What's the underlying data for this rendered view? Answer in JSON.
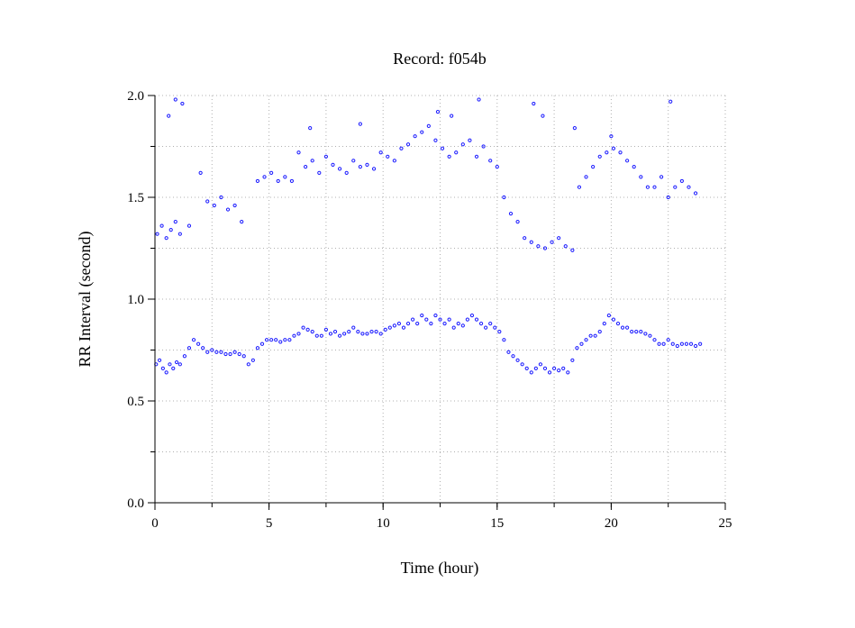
{
  "chart_data": {
    "type": "scatter",
    "title": "Record:  f054b",
    "xlabel": "Time (hour)",
    "ylabel": "RR Interval (second)",
    "xlim": [
      0,
      25
    ],
    "ylim": [
      0,
      2.0
    ],
    "x_ticks": [
      0,
      5,
      10,
      15,
      20,
      25
    ],
    "x_tick_labels": [
      "0",
      "5",
      "10",
      "15",
      "20",
      "25"
    ],
    "y_ticks": [
      0.0,
      0.5,
      1.0,
      1.5,
      2.0
    ],
    "y_tick_labels": [
      "0.0",
      "0.5",
      "1.0",
      "1.5",
      "2.0"
    ],
    "grid": true,
    "marker": "open-circle",
    "color": "#1a1aff",
    "series": [
      {
        "x": [
          0.05,
          0.2,
          0.35,
          0.5,
          0.65,
          0.8,
          0.95,
          1.1,
          1.3,
          1.5,
          1.7,
          1.9,
          2.1,
          2.3,
          2.5,
          2.7,
          2.9,
          3.1,
          3.3,
          3.5,
          3.7,
          3.9,
          4.1,
          4.3,
          4.5,
          4.7,
          4.9,
          5.1,
          5.3,
          5.5,
          5.7,
          5.9,
          6.1,
          6.3,
          6.5,
          6.7,
          6.9,
          7.1,
          7.3,
          7.5,
          7.7,
          7.9,
          8.1,
          8.3,
          8.5,
          8.7,
          8.9,
          9.1,
          9.3,
          9.5,
          9.7,
          9.9,
          10.1,
          10.3,
          10.5,
          10.7,
          10.9,
          11.1,
          11.3,
          11.5,
          11.7,
          11.9,
          12.1,
          12.3,
          12.5,
          12.7,
          12.9,
          13.1,
          13.3,
          13.5,
          13.7,
          13.9,
          14.1,
          14.3,
          14.5,
          14.7,
          14.9,
          15.1,
          15.3,
          15.5,
          15.7,
          15.9,
          16.1,
          16.3,
          16.5,
          16.7,
          16.9,
          17.1,
          17.3,
          17.5,
          17.7,
          17.9,
          18.1,
          18.3,
          18.5,
          18.7,
          18.9,
          19.1,
          19.3,
          19.5,
          19.7,
          19.9,
          20.1,
          20.3,
          20.5,
          20.7,
          20.9,
          21.1,
          21.3,
          21.5,
          21.7,
          21.9,
          22.1,
          22.3,
          22.5,
          22.7,
          22.9,
          23.1,
          23.3,
          23.5,
          23.7,
          23.9
        ],
        "y": [
          0.68,
          0.7,
          0.66,
          0.64,
          0.68,
          0.66,
          0.69,
          0.68,
          0.72,
          0.76,
          0.8,
          0.78,
          0.76,
          0.74,
          0.75,
          0.74,
          0.74,
          0.73,
          0.73,
          0.74,
          0.73,
          0.72,
          0.68,
          0.7,
          0.76,
          0.78,
          0.8,
          0.8,
          0.8,
          0.79,
          0.8,
          0.8,
          0.82,
          0.83,
          0.86,
          0.85,
          0.84,
          0.82,
          0.82,
          0.85,
          0.83,
          0.84,
          0.82,
          0.83,
          0.84,
          0.86,
          0.84,
          0.83,
          0.83,
          0.84,
          0.84,
          0.83,
          0.85,
          0.86,
          0.87,
          0.88,
          0.86,
          0.88,
          0.9,
          0.88,
          0.92,
          0.9,
          0.88,
          0.92,
          0.9,
          0.88,
          0.9,
          0.86,
          0.88,
          0.87,
          0.9,
          0.92,
          0.9,
          0.88,
          0.86,
          0.88,
          0.86,
          0.84,
          0.8,
          0.74,
          0.72,
          0.7,
          0.68,
          0.66,
          0.64,
          0.66,
          0.68,
          0.66,
          0.64,
          0.66,
          0.65,
          0.66,
          0.64,
          0.7,
          0.76,
          0.78,
          0.8,
          0.82,
          0.82,
          0.84,
          0.88,
          0.92,
          0.9,
          0.88,
          0.86,
          0.86,
          0.84,
          0.84,
          0.84,
          0.83,
          0.82,
          0.8,
          0.78,
          0.78,
          0.8,
          0.78,
          0.77,
          0.78,
          0.78,
          0.78,
          0.77,
          0.78
        ]
      },
      {
        "x": [
          0.1,
          0.3,
          0.5,
          0.7,
          0.9,
          1.1,
          1.5,
          2.0,
          2.3,
          2.6,
          2.9,
          3.2,
          3.5,
          3.8,
          4.5,
          4.8,
          5.1,
          5.4,
          5.7,
          6.0,
          6.3,
          6.6,
          6.9,
          7.2,
          7.5,
          7.8,
          8.1,
          8.4,
          8.7,
          9.0,
          9.3,
          9.6,
          9.9,
          10.2,
          10.5,
          10.8,
          11.1,
          11.4,
          11.7,
          12.0,
          12.3,
          12.6,
          12.9,
          13.2,
          13.5,
          13.8,
          14.1,
          14.4,
          14.7,
          15.0,
          15.3,
          15.6,
          15.9,
          16.2,
          16.5,
          16.8,
          17.1,
          17.4,
          17.7,
          18.0,
          18.3,
          18.6,
          18.9,
          19.2,
          19.5,
          19.8,
          20.1,
          20.4,
          20.7,
          21.0,
          21.3,
          21.6,
          21.9,
          22.2,
          22.5,
          22.8,
          23.1,
          23.4,
          23.7,
          0.6,
          0.9,
          1.2,
          6.8,
          9.0,
          12.4,
          13.0,
          14.2,
          16.6,
          17.0,
          18.4,
          20.0,
          22.6
        ],
        "y": [
          1.32,
          1.36,
          1.3,
          1.34,
          1.38,
          1.32,
          1.36,
          1.62,
          1.48,
          1.46,
          1.5,
          1.44,
          1.46,
          1.38,
          1.58,
          1.6,
          1.62,
          1.58,
          1.6,
          1.58,
          1.72,
          1.65,
          1.68,
          1.62,
          1.7,
          1.66,
          1.64,
          1.62,
          1.68,
          1.65,
          1.66,
          1.64,
          1.72,
          1.7,
          1.68,
          1.74,
          1.76,
          1.8,
          1.82,
          1.85,
          1.78,
          1.74,
          1.7,
          1.72,
          1.76,
          1.78,
          1.7,
          1.75,
          1.68,
          1.65,
          1.5,
          1.42,
          1.38,
          1.3,
          1.28,
          1.26,
          1.25,
          1.28,
          1.3,
          1.26,
          1.24,
          1.55,
          1.6,
          1.65,
          1.7,
          1.72,
          1.74,
          1.72,
          1.68,
          1.65,
          1.6,
          1.55,
          1.55,
          1.6,
          1.5,
          1.55,
          1.58,
          1.55,
          1.52,
          1.9,
          1.98,
          1.96,
          1.84,
          1.86,
          1.92,
          1.9,
          1.98,
          1.96,
          1.9,
          1.84,
          1.8,
          1.97
        ]
      }
    ]
  }
}
